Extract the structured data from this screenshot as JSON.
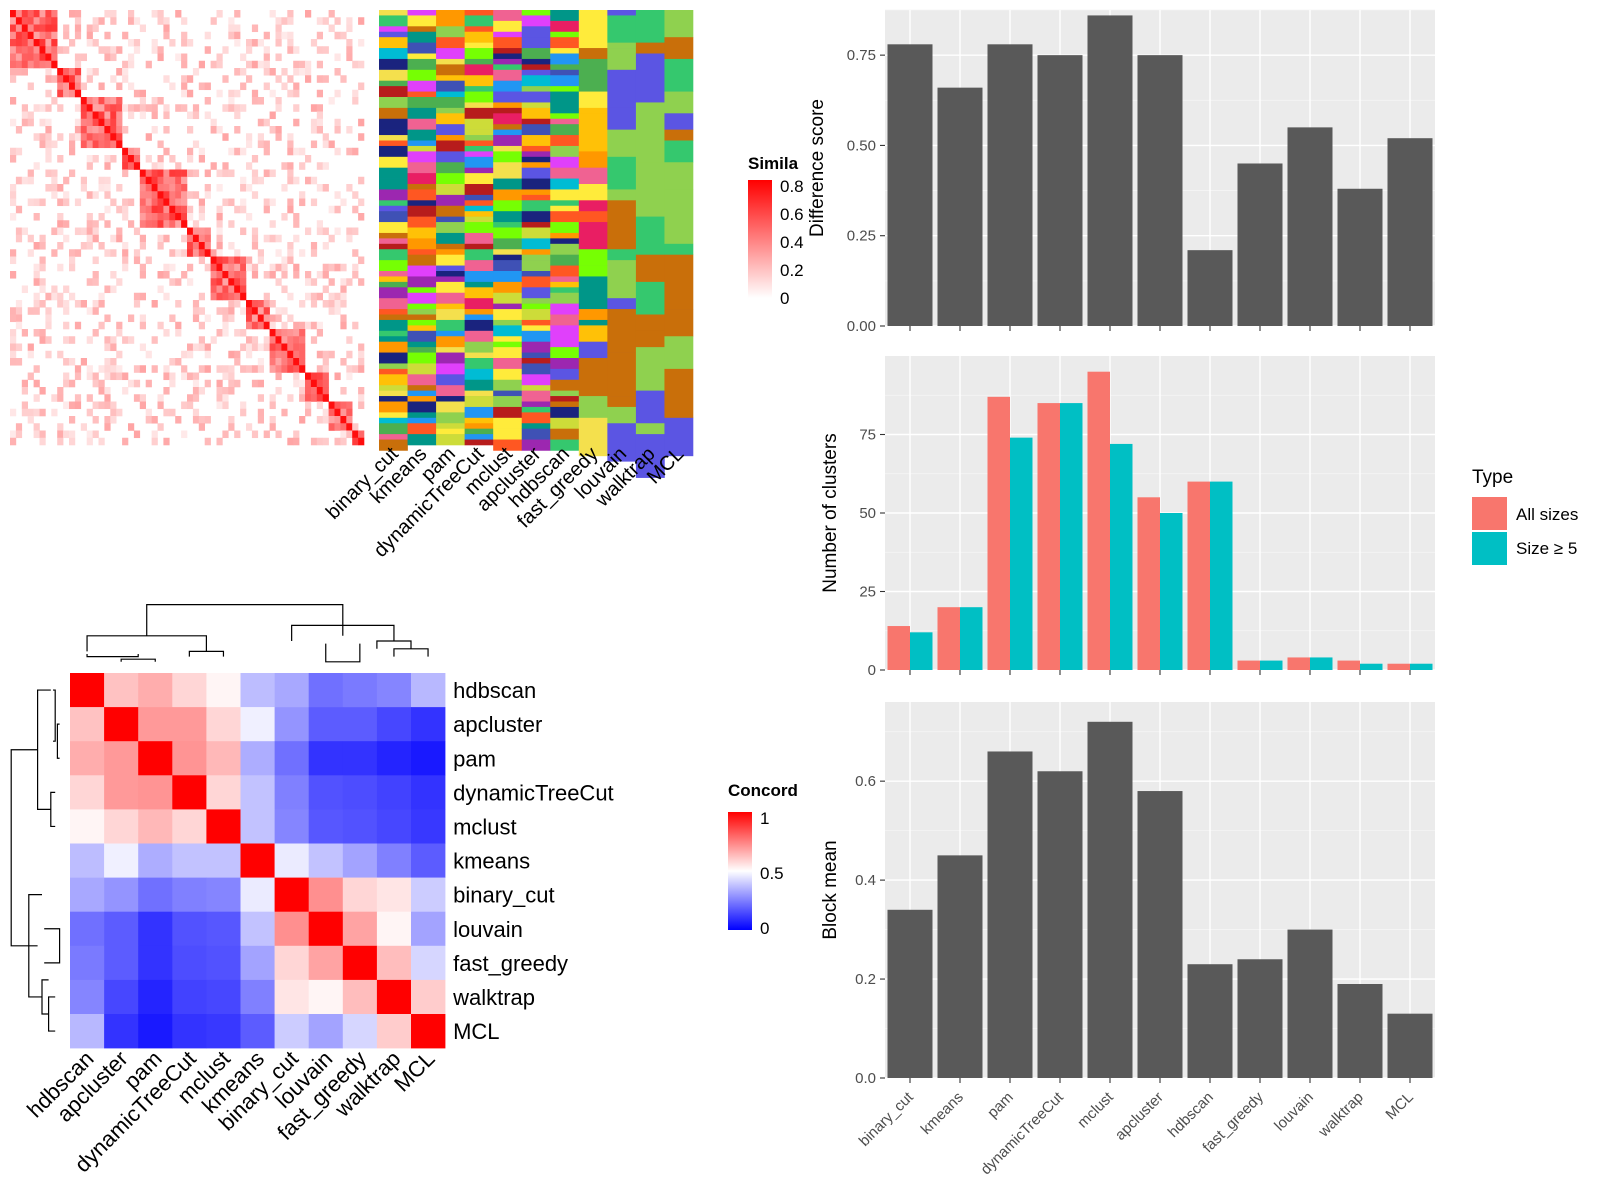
{
  "methods": [
    "binary_cut",
    "kmeans",
    "pam",
    "dynamicTreeCut",
    "mclust",
    "apcluster",
    "hdbscan",
    "fast_greedy",
    "louvain",
    "walktrap",
    "MCL"
  ],
  "similarity_legend": {
    "title": "Simila",
    "ticks": [
      "0.8",
      "0.6",
      "0.4",
      "0.2",
      "0"
    ],
    "colors": {
      "high": "#ff0000",
      "low": "#ffffff"
    }
  },
  "concordance": {
    "legend_title": "Concord",
    "ticks": [
      "1",
      "0.5",
      "0"
    ],
    "order": [
      "hdbscan",
      "apcluster",
      "pam",
      "dynamicTreeCut",
      "mclust",
      "kmeans",
      "binary_cut",
      "louvain",
      "fast_greedy",
      "walktrap",
      "MCL"
    ],
    "colors": {
      "high": "#ff0000",
      "mid": "#ffffff",
      "low": "#0000ff"
    },
    "matrix": [
      [
        1.0,
        0.62,
        0.66,
        0.58,
        0.52,
        0.37,
        0.33,
        0.22,
        0.24,
        0.26,
        0.36
      ],
      [
        0.62,
        1.0,
        0.7,
        0.7,
        0.58,
        0.47,
        0.29,
        0.18,
        0.18,
        0.14,
        0.1
      ],
      [
        0.66,
        0.7,
        1.0,
        0.71,
        0.64,
        0.34,
        0.22,
        0.1,
        0.1,
        0.07,
        0.05
      ],
      [
        0.58,
        0.7,
        0.71,
        1.0,
        0.58,
        0.38,
        0.25,
        0.16,
        0.15,
        0.13,
        0.1
      ],
      [
        0.52,
        0.58,
        0.64,
        0.58,
        1.0,
        0.38,
        0.26,
        0.17,
        0.16,
        0.14,
        0.11
      ],
      [
        0.37,
        0.47,
        0.34,
        0.38,
        0.38,
        1.0,
        0.46,
        0.38,
        0.32,
        0.25,
        0.18
      ],
      [
        0.33,
        0.29,
        0.22,
        0.25,
        0.26,
        0.46,
        1.0,
        0.72,
        0.58,
        0.55,
        0.4
      ],
      [
        0.22,
        0.18,
        0.1,
        0.16,
        0.17,
        0.38,
        0.72,
        1.0,
        0.68,
        0.52,
        0.32
      ],
      [
        0.24,
        0.18,
        0.1,
        0.15,
        0.16,
        0.32,
        0.58,
        0.68,
        1.0,
        0.63,
        0.42
      ],
      [
        0.26,
        0.14,
        0.07,
        0.13,
        0.14,
        0.25,
        0.55,
        0.52,
        0.63,
        1.0,
        0.6
      ],
      [
        0.36,
        0.1,
        0.05,
        0.1,
        0.11,
        0.18,
        0.4,
        0.32,
        0.42,
        0.6,
        1.0
      ]
    ]
  },
  "chart_data": [
    {
      "type": "bar",
      "categories": [
        "binary_cut",
        "kmeans",
        "pam",
        "dynamicTreeCut",
        "mclust",
        "apcluster",
        "hdbscan",
        "fast_greedy",
        "louvain",
        "walktrap",
        "MCL"
      ],
      "values": [
        0.78,
        0.66,
        0.78,
        0.75,
        0.86,
        0.75,
        0.21,
        0.45,
        0.55,
        0.38,
        0.52
      ],
      "ylabel": "Difference score",
      "ylim": [
        0,
        0.875
      ],
      "yticks": [
        "0.00",
        "0.25",
        "0.50",
        "0.75"
      ],
      "ytick_values": [
        0,
        0.25,
        0.5,
        0.75
      ],
      "grid": true,
      "bar_color": "#595959"
    },
    {
      "type": "bar",
      "categories": [
        "binary_cut",
        "kmeans",
        "pam",
        "dynamicTreeCut",
        "mclust",
        "apcluster",
        "hdbscan",
        "fast_greedy",
        "louvain",
        "walktrap",
        "MCL"
      ],
      "series": [
        {
          "name": "All sizes",
          "color": "#f8766d",
          "values": [
            14,
            20,
            87,
            85,
            95,
            55,
            60,
            3,
            4,
            3,
            2
          ]
        },
        {
          "name": "Size ≥ 5",
          "color": "#00bfc4",
          "values": [
            12,
            20,
            74,
            85,
            72,
            50,
            60,
            3,
            4,
            2,
            2
          ]
        }
      ],
      "ylabel": "Number of clusters",
      "ylim": [
        0,
        100
      ],
      "yticks": [
        "0",
        "25",
        "50",
        "75"
      ],
      "ytick_values": [
        0,
        25,
        50,
        75
      ],
      "legend_title": "Type",
      "legend_position": "right",
      "grid": true
    },
    {
      "type": "bar",
      "categories": [
        "binary_cut",
        "kmeans",
        "pam",
        "dynamicTreeCut",
        "mclust",
        "apcluster",
        "hdbscan",
        "fast_greedy",
        "louvain",
        "walktrap",
        "MCL"
      ],
      "values": [
        0.34,
        0.45,
        0.66,
        0.62,
        0.72,
        0.58,
        0.23,
        0.24,
        0.3,
        0.19,
        0.13
      ],
      "ylabel": "Block mean",
      "ylim": [
        0,
        0.76
      ],
      "yticks": [
        "0.0",
        "0.2",
        "0.4",
        "0.6"
      ],
      "ytick_values": [
        0,
        0.2,
        0.4,
        0.6
      ],
      "grid": true,
      "bar_color": "#595959"
    }
  ]
}
